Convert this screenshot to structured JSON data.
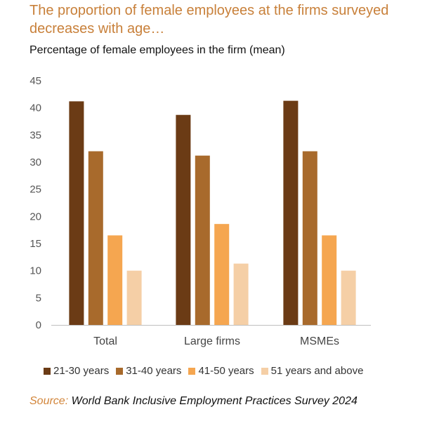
{
  "chart_data": {
    "type": "bar",
    "title": "The proportion of female employees at the firms surveyed decreases with age…",
    "subtitle": "Percentage of female employees in the firm (mean)",
    "categories": [
      "Total",
      "Large firms",
      "MSMEs"
    ],
    "series": [
      {
        "name": "21-30 years",
        "values": [
          41.2,
          38.7,
          41.3
        ],
        "color": "#6b3b15"
      },
      {
        "name": "31-40 years",
        "values": [
          32.0,
          31.2,
          32.0
        ],
        "color": "#a86a2c"
      },
      {
        "name": "41-50 years",
        "values": [
          16.5,
          18.6,
          16.5
        ],
        "color": "#f5a650"
      },
      {
        "name": "51 years and above",
        "values": [
          10.0,
          11.3,
          10.0
        ],
        "color": "#f5cfa6"
      }
    ],
    "ylim": [
      0,
      45
    ],
    "yticks": [
      "0",
      "5",
      "10",
      "15",
      "20",
      "25",
      "30",
      "35",
      "40",
      "45"
    ],
    "grid": false,
    "legend_position": "bottom"
  },
  "source": {
    "label": "Source:",
    "text": "World Bank Inclusive Employment Practices Survey 2024"
  }
}
